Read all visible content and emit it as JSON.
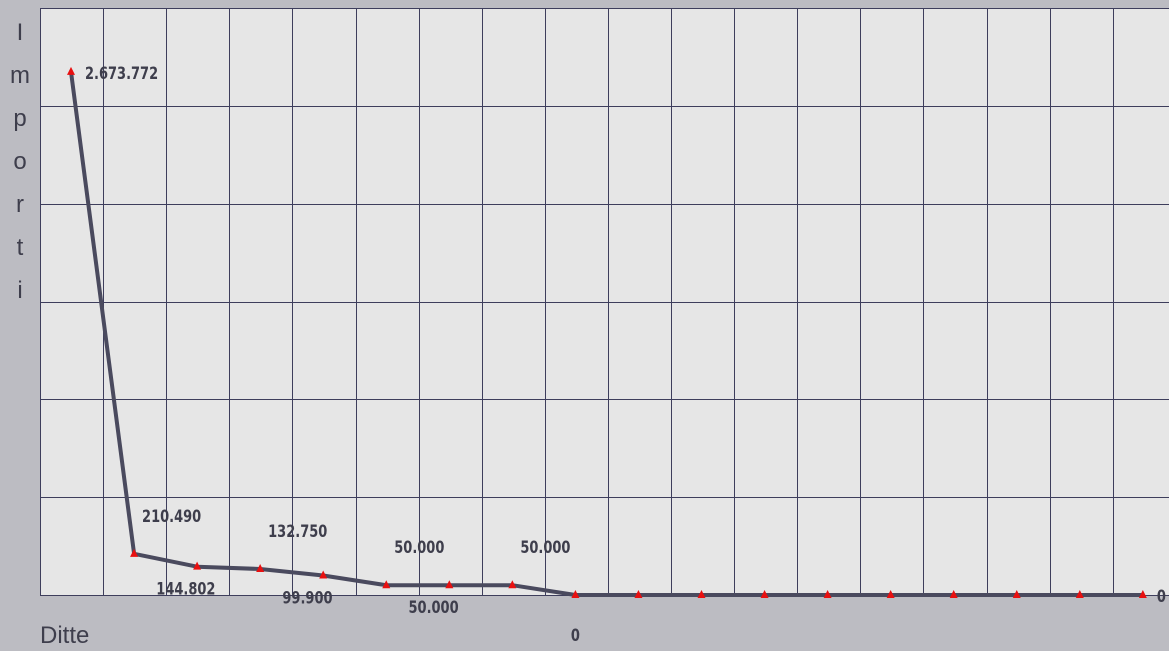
{
  "chart_data": {
    "type": "line",
    "title": "",
    "xlabel": "Ditte",
    "ylabel": "Importi",
    "x": [
      1,
      2,
      3,
      4,
      5,
      6,
      7,
      8,
      9,
      10,
      11,
      12,
      13,
      14,
      15,
      16,
      17,
      18
    ],
    "series": [
      {
        "values": [
          2673772,
          210490,
          144802,
          132750,
          99900,
          50000,
          50000,
          50000,
          0,
          0,
          0,
          0,
          0,
          0,
          0,
          0,
          0,
          0
        ]
      }
    ],
    "data_labels": [
      {
        "index": 0,
        "text": "2.673.772",
        "position": "right"
      },
      {
        "index": 1,
        "text": "210.490",
        "position": "above"
      },
      {
        "index": 2,
        "text": "144.802",
        "position": "below"
      },
      {
        "index": 3,
        "text": "132.750",
        "position": "above"
      },
      {
        "index": 4,
        "text": "99.900",
        "position": "below"
      },
      {
        "index": 5,
        "text": "50.000",
        "position": "above"
      },
      {
        "index": 6,
        "text": "50.000",
        "position": "below"
      },
      {
        "index": 7,
        "text": "50.000",
        "position": "above"
      },
      {
        "index": 8,
        "text": "0",
        "position": "below"
      },
      {
        "index": 17,
        "text": "0",
        "position": "right"
      }
    ],
    "ylim": [
      0,
      3000000
    ],
    "grid": true,
    "colors": {
      "background": "#bcbcc2",
      "plot_area": "#e6e6e6",
      "grid": "#3e3e5c",
      "line": "#4a4a5e",
      "marker": "#e81010",
      "text": "#3e3e4c"
    }
  }
}
